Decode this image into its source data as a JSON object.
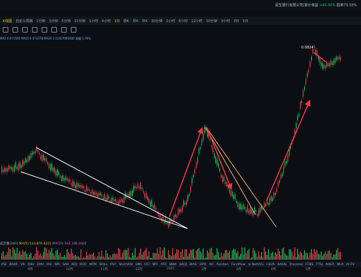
{
  "topbar": {
    "status_text": "民生银行有限公司(累计收益",
    "status_pct": "+60.00%",
    "status_rate": "胜率73.33%"
  },
  "toolbar": {
    "brand": "K线图",
    "items": [
      "自定义周期",
      "1分钟",
      "3分钟",
      "5分钟",
      "15分钟",
      "1小时",
      "4小时",
      "1日",
      "周K",
      "月K",
      "年K",
      "30分钟",
      "2小时",
      "6小时",
      "12小时",
      "10分钟",
      "3小时",
      "3日",
      "5日"
    ],
    "active_index": 7
  },
  "indicator_line": "MA5 0.071565  MA10 0.074378  MA20 1.11507000482  振幅 1.76%",
  "chart": {
    "price_label": "0.0824",
    "date_labels": [
      "9月",
      "10月",
      "11月",
      "12月",
      "2021",
      "2月",
      "3月",
      "4月",
      "5月"
    ]
  },
  "volume_labels": {
    "prefix": "成交量(24H)",
    "ma5": "MA(5):123,876.4222",
    "ma10": "MA(10):162,196.4902"
  },
  "indicator_tabs": [
    "RSI",
    "BRAR",
    "VR",
    "OBV",
    "EMV",
    "RSI",
    "WR",
    "SAR",
    "KDJ",
    "ROC",
    "MTM",
    "BOLL",
    "PSY",
    "StochRSI",
    "DMI",
    "CCI",
    "MFI",
    "ATR",
    "BBW",
    "SKDJ",
    "BIAS",
    "DPO",
    "AO",
    "Position",
    "Fundflow",
    "ai-NetVOL",
    "LSUR",
    "BASIS",
    "Traceme",
    "FTBS",
    "TTSI",
    "AHER",
    "MLR",
    "AI-FV"
  ],
  "colors": {
    "up": "#1fbf5a",
    "down": "#e0424b",
    "bg": "#0b0f14",
    "arrow": "#ff3344",
    "trendline": "#ffffff"
  }
}
